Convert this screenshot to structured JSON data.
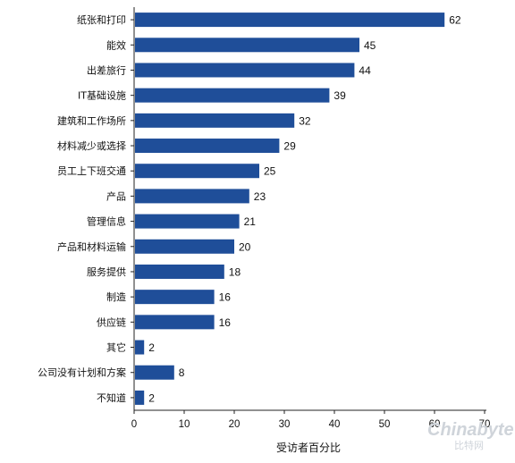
{
  "chart_data": {
    "type": "bar",
    "orientation": "horizontal",
    "categories": [
      "纸张和打印",
      "能效",
      "出差旅行",
      "IT基础设施",
      "建筑和工作场所",
      "材料减少或选择",
      "员工上下班交通",
      "产品",
      "管理信息",
      "产品和材料运输",
      "服务提供",
      "制造",
      "供应链",
      "其它",
      "公司没有计划和方案",
      "不知道"
    ],
    "values": [
      62,
      45,
      44,
      39,
      32,
      29,
      25,
      23,
      21,
      20,
      18,
      16,
      16,
      2,
      8,
      2
    ],
    "xlabel": "受访者百分比",
    "ylabel": "",
    "xlim": [
      0,
      70
    ],
    "xticks": [
      "0",
      "10",
      "20",
      "30",
      "40",
      "50",
      "60",
      "70"
    ],
    "grid": false,
    "bar_color": "#1f4e99"
  },
  "watermark": {
    "logo": "Chinabyte",
    "subtitle": "比特网"
  }
}
